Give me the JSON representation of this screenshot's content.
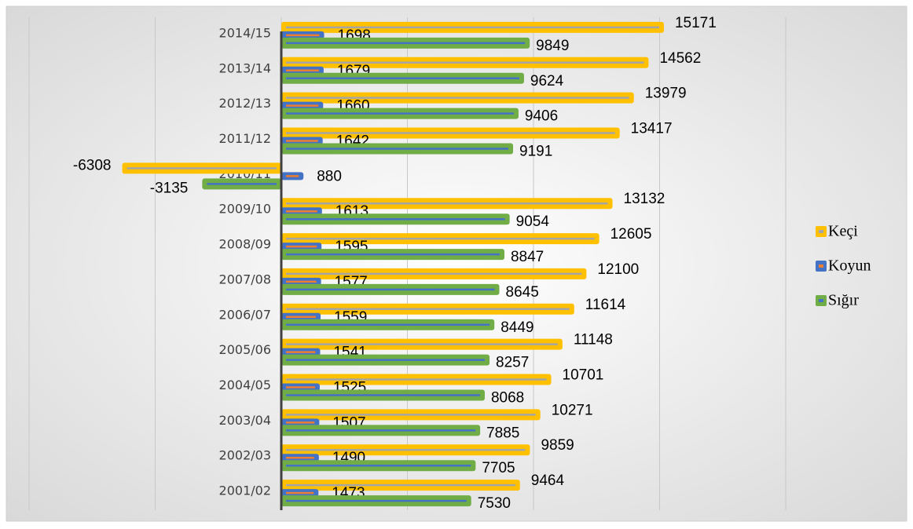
{
  "chart_data": {
    "type": "bar",
    "orientation": "horizontal",
    "categories": [
      "2001/02",
      "2002/03",
      "2003/04",
      "2004/05",
      "2005/06",
      "2006/07",
      "2007/08",
      "2008/09",
      "2009/10",
      "2010/11",
      "2011/12",
      "2012/13",
      "2013/14",
      "2014/15"
    ],
    "series": [
      {
        "name": "Keçi",
        "color": "#FFC000",
        "values": [
          9464,
          9859,
          10271,
          10701,
          11148,
          11614,
          12100,
          12605,
          13132,
          -6308,
          13417,
          13979,
          14562,
          15171
        ]
      },
      {
        "name": "Koyun",
        "color": "#4472C4",
        "values": [
          1473,
          1490,
          1507,
          1525,
          1541,
          1559,
          1577,
          1595,
          1613,
          880,
          1642,
          1660,
          1679,
          1698
        ]
      },
      {
        "name": "Sığır",
        "color": "#70AD47",
        "values": [
          7530,
          7705,
          7885,
          8068,
          8257,
          8449,
          8645,
          8847,
          9054,
          -3135,
          9191,
          9406,
          9624,
          9849
        ]
      }
    ],
    "xlim": [
      -10000,
      20000
    ],
    "xticks": [
      -10000,
      -5000,
      0,
      5000,
      10000,
      15000,
      20000
    ],
    "grid": true,
    "legend": "right"
  }
}
